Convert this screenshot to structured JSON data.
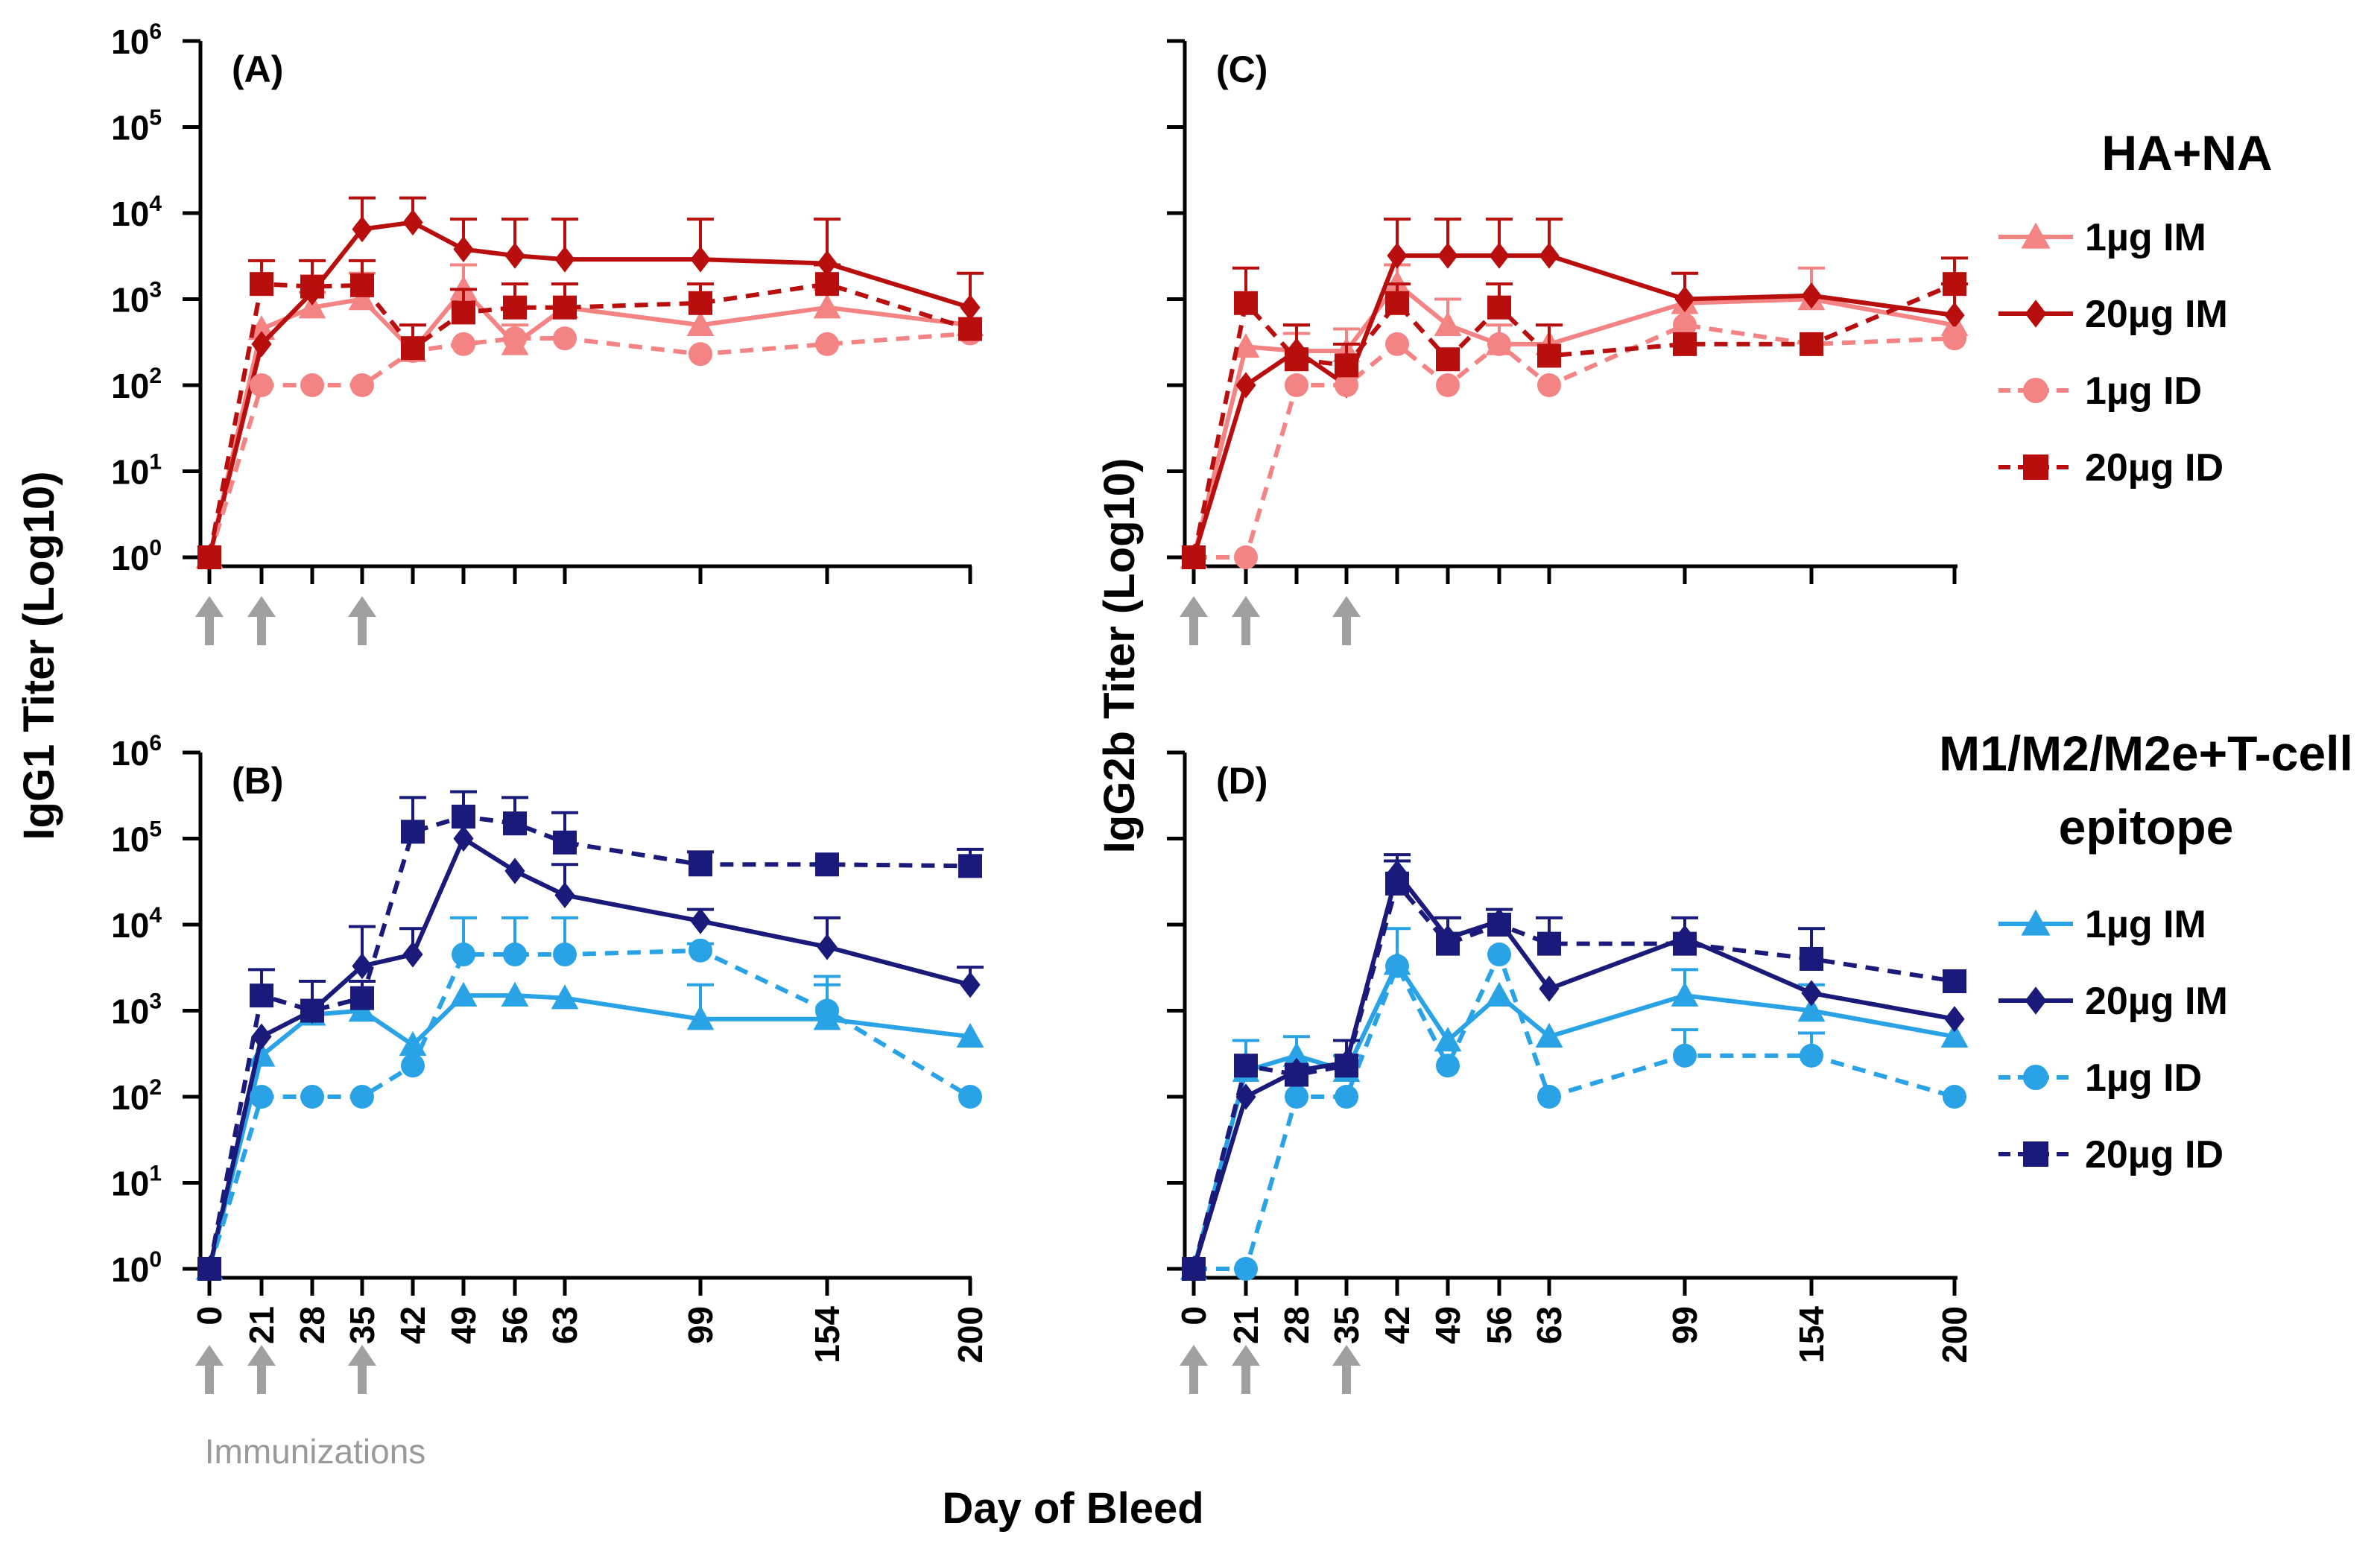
{
  "chart_data": [
    {
      "id": "A",
      "type": "line",
      "panel_label": "(A)",
      "group": "HA+NA",
      "ylabel": "IgG1 Titer (Log10)",
      "y_scale": "log10",
      "ylim": [
        1,
        1000000
      ],
      "y_ticks": [
        {
          "base": "10",
          "exp": "0"
        },
        {
          "base": "10",
          "exp": "1"
        },
        {
          "base": "10",
          "exp": "2"
        },
        {
          "base": "10",
          "exp": "3"
        },
        {
          "base": "10",
          "exp": "4"
        },
        {
          "base": "10",
          "exp": "5"
        },
        {
          "base": "10",
          "exp": "6"
        }
      ],
      "x_ticks": [
        "0",
        "21",
        "28",
        "35",
        "42",
        "49",
        "56",
        "63",
        "99",
        "154",
        "200"
      ],
      "immunization_days": [
        "0",
        "21",
        "35"
      ],
      "series": [
        {
          "name": "1µg IM",
          "color": "#f48383",
          "marker": "triangle",
          "dash": false,
          "values": [
            1,
            450,
            800,
            1000,
            250,
            1300,
            300,
            800,
            500,
            800,
            500
          ],
          "error_upper": [
            null,
            null,
            1200,
            2000,
            500,
            2500,
            500,
            1500,
            null,
            1300,
            null
          ]
        },
        {
          "name": "20µg IM",
          "color": "#b80e0e",
          "marker": "diamond",
          "dash": false,
          "values": [
            1,
            300,
            1200,
            6500,
            7800,
            3800,
            3200,
            2900,
            2900,
            2600,
            800
          ],
          "error_upper": [
            null,
            null,
            null,
            15000,
            15000,
            8500,
            8500,
            8500,
            8500,
            8500,
            2000
          ]
        },
        {
          "name": "1µg ID",
          "color": "#f48383",
          "marker": "circle",
          "dash": true,
          "values": [
            1,
            100,
            100,
            100,
            250,
            300,
            350,
            350,
            230,
            300,
            400
          ],
          "error_upper": [
            null,
            null,
            null,
            null,
            null,
            null,
            null,
            null,
            null,
            null,
            null
          ]
        },
        {
          "name": "20µg ID",
          "color": "#b80e0e",
          "marker": "square",
          "dash": true,
          "values": [
            1,
            1500,
            1400,
            1450,
            270,
            700,
            800,
            800,
            900,
            1500,
            450
          ],
          "error_upper": [
            null,
            2800,
            2800,
            2800,
            500,
            1300,
            1500,
            1500,
            1500,
            2500,
            null
          ]
        }
      ]
    },
    {
      "id": "C",
      "type": "line",
      "panel_label": "(C)",
      "group": "HA+NA",
      "ylabel": "IgG2b Titer (Log10)",
      "y_scale": "log10",
      "ylim": [
        1,
        1000000
      ],
      "x_ticks": [
        "0",
        "21",
        "28",
        "35",
        "42",
        "49",
        "56",
        "63",
        "99",
        "154",
        "200"
      ],
      "immunization_days": [
        "0",
        "21",
        "35"
      ],
      "series": [
        {
          "name": "1µg IM",
          "color": "#f48383",
          "marker": "triangle",
          "dash": false,
          "values": [
            1,
            280,
            250,
            250,
            1500,
            500,
            300,
            300,
            900,
            1000,
            500
          ],
          "error_upper": [
            null,
            null,
            400,
            450,
            2500,
            1000,
            500,
            500,
            2000,
            2300,
            null
          ]
        },
        {
          "name": "20µg IM",
          "color": "#b80e0e",
          "marker": "diamond",
          "dash": false,
          "values": [
            1,
            100,
            250,
            100,
            3200,
            3200,
            3200,
            3200,
            1000,
            1100,
            650
          ],
          "error_upper": [
            null,
            null,
            500,
            null,
            8500,
            8500,
            8500,
            8500,
            2000,
            null,
            1500
          ]
        },
        {
          "name": "1µg ID",
          "color": "#f48383",
          "marker": "circle",
          "dash": true,
          "values": [
            1,
            1,
            100,
            100,
            300,
            100,
            300,
            100,
            500,
            300,
            350
          ],
          "error_upper": [
            null,
            null,
            null,
            null,
            null,
            null,
            null,
            null,
            null,
            null,
            null
          ]
        },
        {
          "name": "20µg ID",
          "color": "#b80e0e",
          "marker": "square",
          "dash": true,
          "values": [
            1,
            900,
            200,
            170,
            900,
            200,
            800,
            220,
            300,
            300,
            1500
          ],
          "error_upper": [
            null,
            2300,
            500,
            300,
            1500,
            null,
            1500,
            500,
            null,
            null,
            3000
          ]
        }
      ]
    },
    {
      "id": "B",
      "type": "line",
      "panel_label": "(B)",
      "group": "M1/M2/M2e+T-cell epitope",
      "ylabel": "IgG1 Titer (Log10)",
      "y_scale": "log10",
      "ylim": [
        1,
        1000000
      ],
      "y_ticks": [
        {
          "base": "10",
          "exp": "0"
        },
        {
          "base": "10",
          "exp": "1"
        },
        {
          "base": "10",
          "exp": "2"
        },
        {
          "base": "10",
          "exp": "3"
        },
        {
          "base": "10",
          "exp": "4"
        },
        {
          "base": "10",
          "exp": "5"
        },
        {
          "base": "10",
          "exp": "6"
        }
      ],
      "x_ticks": [
        "0",
        "21",
        "28",
        "35",
        "42",
        "49",
        "56",
        "63",
        "99",
        "154",
        "200"
      ],
      "xlabel": "Day of Bleed",
      "immunization_days": [
        "0",
        "21",
        "35"
      ],
      "series": [
        {
          "name": "1µg IM",
          "color": "#29a3e6",
          "marker": "triangle",
          "dash": false,
          "values": [
            1,
            300,
            900,
            1000,
            400,
            1500,
            1500,
            1400,
            800,
            800,
            500
          ],
          "error_upper": [
            null,
            null,
            null,
            null,
            null,
            null,
            null,
            null,
            2000,
            2000,
            null
          ]
        },
        {
          "name": "20µg IM",
          "color": "#1a1a7a",
          "marker": "diamond",
          "dash": false,
          "values": [
            1,
            500,
            1000,
            3300,
            4500,
            100000,
            42000,
            22000,
            11000,
            5500,
            2000
          ],
          "error_upper": [
            null,
            null,
            2200,
            9500,
            9000,
            null,
            null,
            50000,
            15000,
            12000,
            3200
          ]
        },
        {
          "name": "1µg ID",
          "color": "#29a3e6",
          "marker": "circle",
          "dash": true,
          "values": [
            1,
            100,
            100,
            100,
            230,
            4500,
            4500,
            4500,
            5000,
            1000,
            100
          ],
          "error_upper": [
            null,
            null,
            null,
            null,
            null,
            12000,
            12000,
            12000,
            6000,
            2500,
            null
          ]
        },
        {
          "name": "20µg ID",
          "color": "#1a1a7a",
          "marker": "square",
          "dash": true,
          "values": [
            1,
            1500,
            1000,
            1400,
            120000,
            180000,
            150000,
            90000,
            50000,
            50000,
            48000
          ],
          "error_upper": [
            null,
            3000,
            2200,
            2200,
            300000,
            350000,
            300000,
            200000,
            70000,
            null,
            75000
          ]
        }
      ]
    },
    {
      "id": "D",
      "type": "line",
      "panel_label": "(D)",
      "group": "M1/M2/M2e+T-cell epitope",
      "ylabel": "IgG2b Titer (Log10)",
      "y_scale": "log10",
      "ylim": [
        1,
        1000000
      ],
      "x_ticks": [
        "0",
        "21",
        "28",
        "35",
        "42",
        "49",
        "56",
        "63",
        "99",
        "154",
        "200"
      ],
      "immunization_days": [
        "0",
        "21",
        "35"
      ],
      "series": [
        {
          "name": "1µg IM",
          "color": "#29a3e6",
          "marker": "triangle",
          "dash": false,
          "values": [
            1,
            200,
            300,
            200,
            3500,
            450,
            1500,
            500,
            1500,
            1000,
            500
          ],
          "error_upper": [
            null,
            450,
            500,
            300,
            9000,
            null,
            null,
            null,
            3000,
            2000,
            null
          ]
        },
        {
          "name": "20µg IM",
          "color": "#1a1a7a",
          "marker": "diamond",
          "dash": false,
          "values": [
            1,
            100,
            200,
            250,
            40000,
            7000,
            11000,
            1800,
            7000,
            1600,
            800
          ],
          "error_upper": [
            null,
            null,
            null,
            null,
            65000,
            12000,
            15000,
            null,
            12000,
            null,
            null
          ]
        },
        {
          "name": "1µg ID",
          "color": "#29a3e6",
          "marker": "circle",
          "dash": true,
          "values": [
            1,
            1,
            100,
            100,
            3300,
            230,
            4500,
            100,
            300,
            300,
            100
          ],
          "error_upper": [
            null,
            null,
            null,
            null,
            null,
            null,
            null,
            null,
            600,
            550,
            null
          ]
        },
        {
          "name": "20µg ID",
          "color": "#1a1a7a",
          "marker": "square",
          "dash": true,
          "values": [
            1,
            230,
            180,
            230,
            30000,
            6000,
            10000,
            6000,
            6000,
            4000,
            2200
          ],
          "error_upper": [
            null,
            null,
            null,
            450,
            55000,
            12000,
            null,
            12000,
            null,
            9000,
            null
          ]
        }
      ]
    }
  ],
  "figure": {
    "y_axis_title_left": "IgG1 Titer (Log10)",
    "y_axis_title_right": "IgG2b Titer (Log10)",
    "x_axis_title": "Day of Bleed",
    "immunizations_label": "Immunizations"
  },
  "legend": {
    "top": {
      "title": "HA+NA",
      "items": [
        {
          "label": "1µg IM",
          "color": "#f48383",
          "marker": "triangle",
          "dash": false
        },
        {
          "label": "20µg IM",
          "color": "#b80e0e",
          "marker": "diamond",
          "dash": false
        },
        {
          "label": "1µg ID",
          "color": "#f48383",
          "marker": "circle",
          "dash": true
        },
        {
          "label": "20µg ID",
          "color": "#b80e0e",
          "marker": "square",
          "dash": true
        }
      ]
    },
    "bottom": {
      "title_line1": "M1/M2/M2e+T-cell",
      "title_line2": "epitope",
      "items": [
        {
          "label": "1µg IM",
          "color": "#29a3e6",
          "marker": "triangle",
          "dash": false
        },
        {
          "label": "20µg IM",
          "color": "#1a1a7a",
          "marker": "diamond",
          "dash": false
        },
        {
          "label": "1µg ID",
          "color": "#29a3e6",
          "marker": "circle",
          "dash": true
        },
        {
          "label": "20µg ID",
          "color": "#1a1a7a",
          "marker": "square",
          "dash": true
        }
      ]
    },
    "arrow_color": "#a0a0a0"
  }
}
